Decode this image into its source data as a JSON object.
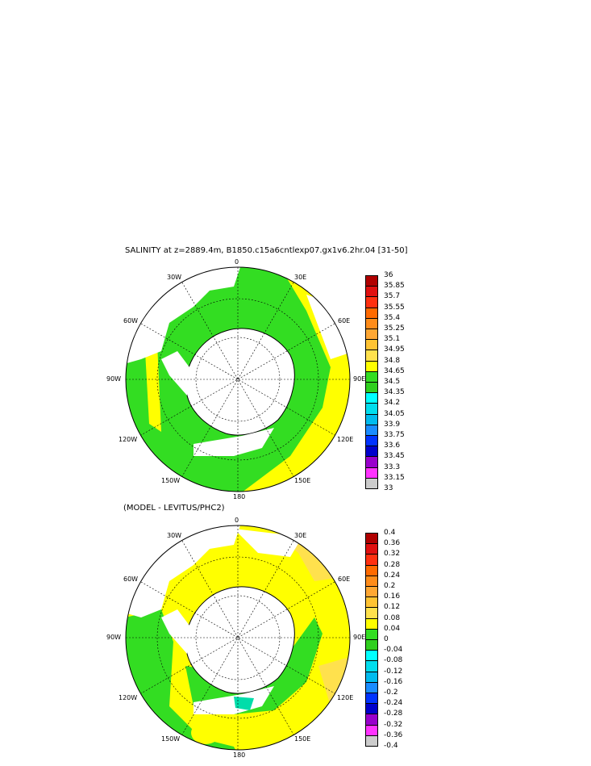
{
  "title": "SALINITY at z=2889.4m, B1850.c15a6cntlexp07.gx1v6.2hr.04 [31-50]",
  "subtitle": "(MODEL - LEVITUS/PHC2)",
  "map_labels": {
    "top": "0",
    "bottom": "180",
    "left": "90W",
    "right": "90E",
    "upper_left_30": "30W",
    "upper_right_30": "30E",
    "upper_left_60": "60W",
    "upper_right_60": "60E",
    "lower_left_120": "120W",
    "lower_right_120": "120E",
    "lower_left_150": "150W",
    "lower_right_150": "150E"
  },
  "colorbar_top": {
    "labels": [
      "36",
      "35.85",
      "35.7",
      "35.55",
      "35.4",
      "35.25",
      "35.1",
      "34.95",
      "34.8",
      "34.65",
      "34.5",
      "34.35",
      "34.2",
      "34.05",
      "33.9",
      "33.75",
      "33.6",
      "33.45",
      "33.3",
      "33.15",
      "33"
    ],
    "colors": [
      "#b00000",
      "#e01010",
      "#ff3010",
      "#ff6a00",
      "#ff8c1a",
      "#ffa733",
      "#ffc333",
      "#ffe14d",
      "#ffff00",
      "#33dd22",
      "#2fcf1e",
      "#00ffff",
      "#00ddee",
      "#00bbee",
      "#1a8cff",
      "#0033ff",
      "#0000cc",
      "#9900cc",
      "#ff33ff",
      "#cccccc",
      "#777777"
    ]
  },
  "colorbar_bottom": {
    "labels": [
      "0.4",
      "0.36",
      "0.32",
      "0.28",
      "0.24",
      "0.2",
      "0.16",
      "0.12",
      "0.08",
      "0.04",
      "0",
      "-0.04",
      "-0.08",
      "-0.12",
      "-0.16",
      "-0.2",
      "-0.24",
      "-0.28",
      "-0.32",
      "-0.36",
      "-0.4"
    ],
    "colors": [
      "#b00000",
      "#e01010",
      "#ff3010",
      "#ff6a00",
      "#ff8c1a",
      "#ffa733",
      "#ffc333",
      "#ffe14d",
      "#ffff00",
      "#33dd22",
      "#2fcf1e",
      "#00ffff",
      "#00ddee",
      "#00bbee",
      "#1a8cff",
      "#0033ff",
      "#0000cc",
      "#9900cc",
      "#ff33ff",
      "#cccccc",
      "#777777"
    ]
  },
  "map_colors": {
    "ocean_top": "#33dd22",
    "ocean_top_warm": "#ffff00",
    "ocean_bottom": "#ffff00",
    "ocean_bottom_cool": "#33dd22",
    "ocean_bottom_warm": "#ffe14d",
    "land": "#ffffff"
  }
}
